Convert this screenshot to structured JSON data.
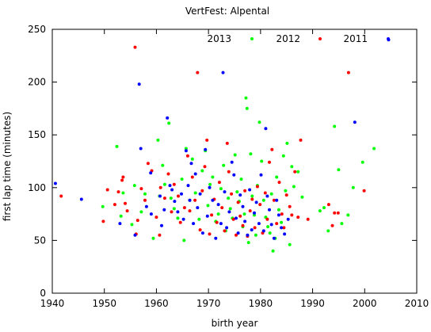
{
  "chart_data": {
    "type": "scatter",
    "title": "VertFest: Alpental",
    "xlabel": "birth year",
    "ylabel": "first lap time (minutes)",
    "xlim": [
      1940,
      2010
    ],
    "ylim": [
      0,
      250
    ],
    "xticks": [
      1940,
      1950,
      1960,
      1970,
      1980,
      1990,
      2000,
      2010
    ],
    "yticks": [
      0,
      50,
      100,
      150,
      200,
      250
    ],
    "grid": false,
    "legend_position": "top-right",
    "series": [
      {
        "name": "2013",
        "color": "#00ff00",
        "points": [
          [
            1949.7,
            82
          ],
          [
            1952.4,
            139
          ],
          [
            1953.2,
            73
          ],
          [
            1953.6,
            95
          ],
          [
            1955.3,
            65
          ],
          [
            1955.8,
            102
          ],
          [
            1957.1,
            77
          ],
          [
            1957.8,
            94
          ],
          [
            1959.4,
            52
          ],
          [
            1960.3,
            145
          ],
          [
            1960.6,
            92
          ],
          [
            1961.2,
            121
          ],
          [
            1961.6,
            103
          ],
          [
            1962.4,
            161
          ],
          [
            1962.8,
            90
          ],
          [
            1963.4,
            80
          ],
          [
            1964.1,
            71
          ],
          [
            1964.9,
            108
          ],
          [
            1965.3,
            50
          ],
          [
            1965.7,
            137
          ],
          [
            1966.4,
            88
          ],
          [
            1966.9,
            127
          ],
          [
            1967.5,
            95
          ],
          [
            1968.2,
            70
          ],
          [
            1968.8,
            116
          ],
          [
            1969.4,
            135
          ],
          [
            1969.9,
            83
          ],
          [
            1970.3,
            103
          ],
          [
            1970.8,
            110
          ],
          [
            1971.4,
            68
          ],
          [
            1971.9,
            75
          ],
          [
            1972.4,
            99
          ],
          [
            1972.9,
            121
          ],
          [
            1973.3,
            59
          ],
          [
            1973.8,
            90
          ],
          [
            1974.2,
            80
          ],
          [
            1974.6,
            71
          ],
          [
            1975.1,
            131
          ],
          [
            1975.5,
            96
          ],
          [
            1975.9,
            87
          ],
          [
            1976.3,
            108
          ],
          [
            1976.6,
            63
          ],
          [
            1976.9,
            75
          ],
          [
            1977.2,
            185
          ],
          [
            1977.4,
            175
          ],
          [
            1977.7,
            48
          ],
          [
            1978.1,
            132
          ],
          [
            1978.4,
            92
          ],
          [
            1978.8,
            74
          ],
          [
            1979.1,
            55
          ],
          [
            1979.4,
            102
          ],
          [
            1979.8,
            162
          ],
          [
            1980.2,
            125
          ],
          [
            1980.6,
            88
          ],
          [
            1981.0,
            72
          ],
          [
            1981.4,
            63
          ],
          [
            1981.8,
            57
          ],
          [
            1982.1,
            94
          ],
          [
            1982.4,
            40
          ],
          [
            1982.8,
            52
          ],
          [
            1983.1,
            110
          ],
          [
            1983.5,
            79
          ],
          [
            1984.0,
            67
          ],
          [
            1984.4,
            130
          ],
          [
            1984.8,
            97
          ],
          [
            1985.1,
            142
          ],
          [
            1985.6,
            46
          ],
          [
            1986.0,
            120
          ],
          [
            1986.4,
            101
          ],
          [
            1987.2,
            115
          ],
          [
            1988.0,
            91
          ],
          [
            1991.4,
            78
          ],
          [
            1992.2,
            81
          ],
          [
            1993.0,
            59
          ],
          [
            1994.2,
            158
          ],
          [
            1995.0,
            117
          ],
          [
            1995.6,
            66
          ],
          [
            1996.8,
            74
          ],
          [
            1997.8,
            100
          ],
          [
            1999.6,
            124
          ],
          [
            2001.8,
            137
          ]
        ]
      },
      {
        "name": "2012",
        "color": "#ff0000",
        "points": [
          [
            1941.7,
            92
          ],
          [
            1949.8,
            68
          ],
          [
            1950.6,
            98
          ],
          [
            1952.0,
            84
          ],
          [
            1952.7,
            96
          ],
          [
            1953.4,
            107
          ],
          [
            1953.6,
            110
          ],
          [
            1954.0,
            85
          ],
          [
            1954.4,
            78
          ],
          [
            1955.9,
            233
          ],
          [
            1956.1,
            56
          ],
          [
            1956.4,
            69
          ],
          [
            1957.1,
            99
          ],
          [
            1957.8,
            88
          ],
          [
            1958.4,
            123
          ],
          [
            1959.1,
            116
          ],
          [
            1960.0,
            72
          ],
          [
            1960.6,
            55
          ],
          [
            1960.8,
            100
          ],
          [
            1961.6,
            90
          ],
          [
            1962.3,
            113
          ],
          [
            1962.9,
            77
          ],
          [
            1963.4,
            103
          ],
          [
            1964.2,
            92
          ],
          [
            1964.6,
            67
          ],
          [
            1965.4,
            81
          ],
          [
            1966.0,
            130
          ],
          [
            1966.4,
            78
          ],
          [
            1966.9,
            110
          ],
          [
            1967.4,
            88
          ],
          [
            1967.9,
            209
          ],
          [
            1968.4,
            60
          ],
          [
            1968.8,
            97
          ],
          [
            1969.3,
            120
          ],
          [
            1969.7,
            145
          ],
          [
            1970.2,
            56
          ],
          [
            1970.6,
            74
          ],
          [
            1971.1,
            89
          ],
          [
            1971.6,
            67
          ],
          [
            1972.1,
            105
          ],
          [
            1972.6,
            81
          ],
          [
            1973.1,
            59
          ],
          [
            1973.6,
            142
          ],
          [
            1973.9,
            115
          ],
          [
            1974.4,
            94
          ],
          [
            1974.8,
            70
          ],
          [
            1975.3,
            55
          ],
          [
            1975.7,
            86
          ],
          [
            1976.1,
            73
          ],
          [
            1976.6,
            64
          ],
          [
            1977.0,
            97
          ],
          [
            1977.5,
            54
          ],
          [
            1978.0,
            78
          ],
          [
            1978.4,
            89
          ],
          [
            1978.9,
            62
          ],
          [
            1979.4,
            101
          ],
          [
            1979.9,
            84
          ],
          [
            1980.4,
            57
          ],
          [
            1980.9,
            95
          ],
          [
            1981.3,
            70
          ],
          [
            1981.7,
            124
          ],
          [
            1982.2,
            136
          ],
          [
            1982.6,
            88
          ],
          [
            1983.1,
            66
          ],
          [
            1983.6,
            105
          ],
          [
            1984.1,
            75
          ],
          [
            1984.5,
            62
          ],
          [
            1985.0,
            93
          ],
          [
            1985.6,
            82
          ],
          [
            1986.0,
            74
          ],
          [
            1986.6,
            115
          ],
          [
            1987.2,
            72
          ],
          [
            1987.7,
            145
          ],
          [
            1989.1,
            70
          ],
          [
            1993.1,
            84
          ],
          [
            1993.8,
            64
          ],
          [
            1994.2,
            76
          ],
          [
            1994.9,
            76
          ],
          [
            1996.9,
            209
          ],
          [
            1999.9,
            97
          ]
        ]
      },
      {
        "name": "2011",
        "color": "#0000ff",
        "points": [
          [
            1940.6,
            104
          ],
          [
            1945.6,
            89
          ],
          [
            1953.0,
            66
          ],
          [
            1955.9,
            55
          ],
          [
            1956.7,
            198
          ],
          [
            1957.0,
            137
          ],
          [
            1958.1,
            82
          ],
          [
            1958.9,
            114
          ],
          [
            1959.0,
            75
          ],
          [
            1960.7,
            92
          ],
          [
            1961.0,
            64
          ],
          [
            1961.5,
            79
          ],
          [
            1962.1,
            166
          ],
          [
            1962.6,
            102
          ],
          [
            1963.0,
            98
          ],
          [
            1963.5,
            87
          ],
          [
            1964.1,
            77
          ],
          [
            1964.8,
            94
          ],
          [
            1965.2,
            70
          ],
          [
            1965.7,
            135
          ],
          [
            1966.1,
            102
          ],
          [
            1966.4,
            88
          ],
          [
            1966.7,
            123
          ],
          [
            1967.1,
            66
          ],
          [
            1967.5,
            113
          ],
          [
            1967.9,
            81
          ],
          [
            1968.4,
            94
          ],
          [
            1968.9,
            57
          ],
          [
            1969.4,
            136
          ],
          [
            1969.8,
            73
          ],
          [
            1970.2,
            100
          ],
          [
            1970.8,
            88
          ],
          [
            1971.4,
            52
          ],
          [
            1971.9,
            84
          ],
          [
            1972.4,
            66
          ],
          [
            1972.8,
            209
          ],
          [
            1973.1,
            96
          ],
          [
            1973.5,
            62
          ],
          [
            1974.0,
            77
          ],
          [
            1974.5,
            124
          ],
          [
            1974.9,
            112
          ],
          [
            1975.3,
            71
          ],
          [
            1975.7,
            57
          ],
          [
            1976.1,
            93
          ],
          [
            1976.6,
            82
          ],
          [
            1977.0,
            68
          ],
          [
            1977.5,
            55
          ],
          [
            1977.9,
            98
          ],
          [
            1978.3,
            60
          ],
          [
            1978.8,
            76
          ],
          [
            1979.2,
            86
          ],
          [
            1979.7,
            66
          ],
          [
            1980.1,
            112
          ],
          [
            1980.6,
            59
          ],
          [
            1981.0,
            156
          ],
          [
            1981.3,
            92
          ],
          [
            1981.7,
            79
          ],
          [
            1982.1,
            65
          ],
          [
            1982.6,
            52
          ],
          [
            1983.1,
            88
          ],
          [
            1983.5,
            74
          ],
          [
            1984.0,
            62
          ],
          [
            1984.6,
            56
          ],
          [
            1985.3,
            70
          ],
          [
            1998.1,
            162
          ],
          [
            2004.6,
            240
          ]
        ]
      }
    ]
  }
}
